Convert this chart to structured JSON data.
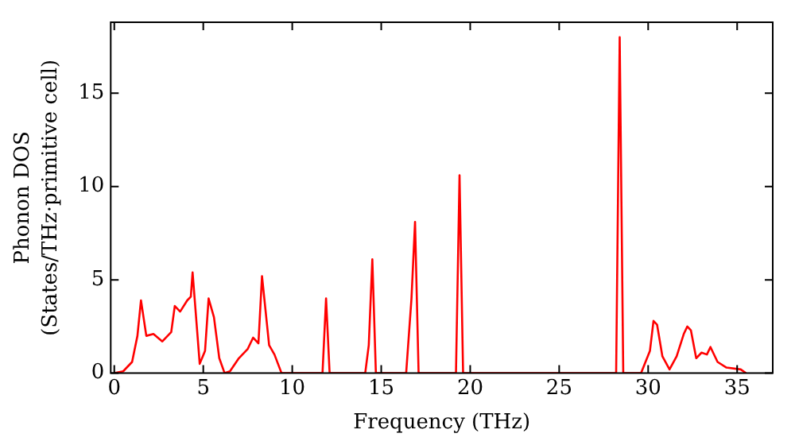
{
  "chart_data": {
    "type": "line",
    "xlabel": "Frequency (THz)",
    "ylabel": "Phonon DOS\n(States/THz·primitive cell)",
    "x": [
      0,
      0.5,
      1,
      1.3,
      1.5,
      1.8,
      2.2,
      2.7,
      3.2,
      3.4,
      3.7,
      4.1,
      4.3,
      4.4,
      4.8,
      5.1,
      5.3,
      5.6,
      5.9,
      6.2,
      6.5,
      7,
      7.5,
      7.8,
      8.1,
      8.3,
      8.7,
      9,
      9.4,
      11.7,
      11.9,
      12.1,
      14.1,
      14.3,
      14.5,
      14.7,
      16.4,
      16.7,
      16.9,
      17.1,
      19.2,
      19.4,
      19.6,
      28.2,
      28.4,
      28.6,
      29.6,
      30.1,
      30.3,
      30.5,
      30.8,
      31.2,
      31.6,
      32.0,
      32.2,
      32.4,
      32.7,
      33.0,
      33.3,
      33.5,
      33.9,
      34.4,
      35.2,
      35.5
    ],
    "series": [
      {
        "color": "#ff0000",
        "values": [
          0,
          0.1,
          0.6,
          2,
          3.9,
          2,
          2.1,
          1.7,
          2.2,
          3.6,
          3.3,
          3.9,
          4.1,
          5.4,
          0.5,
          1.2,
          4.0,
          3,
          0.8,
          0,
          0.1,
          0.8,
          1.3,
          1.9,
          1.6,
          5.2,
          1.5,
          1.0,
          0,
          0,
          4.0,
          0,
          0,
          1.5,
          6.1,
          0,
          0,
          4,
          8.1,
          0,
          0,
          10.6,
          0,
          0,
          18,
          0,
          0,
          1.2,
          2.8,
          2.6,
          0.9,
          0.2,
          0.9,
          2.1,
          2.5,
          2.3,
          0.8,
          1.1,
          1.0,
          1.4,
          0.6,
          0.3,
          0.2,
          0
        ]
      }
    ],
    "xlim": [
      -0.2,
      37
    ],
    "ylim": [
      0,
      18.8
    ],
    "xticks": [
      0,
      5,
      10,
      15,
      20,
      25,
      30,
      35
    ],
    "yticks": [
      0,
      5,
      10,
      15
    ],
    "grid": false,
    "legend": false,
    "marker": "none",
    "line_style": "solid"
  }
}
